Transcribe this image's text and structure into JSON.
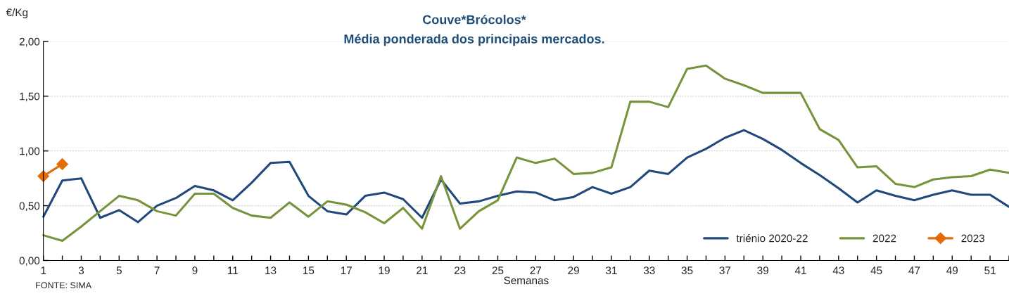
{
  "chart_data": {
    "type": "line",
    "title": "Couve*Brócolos*",
    "subtitle": "Média ponderada dos principais mercados.",
    "xlabel": "Semanas",
    "ylabel": "€/Kg",
    "x": [
      1,
      2,
      3,
      4,
      5,
      6,
      7,
      8,
      9,
      10,
      11,
      12,
      13,
      14,
      15,
      16,
      17,
      18,
      19,
      20,
      21,
      22,
      23,
      24,
      25,
      26,
      27,
      28,
      29,
      30,
      31,
      32,
      33,
      34,
      35,
      36,
      37,
      38,
      39,
      40,
      41,
      42,
      43,
      44,
      45,
      46,
      47,
      48,
      49,
      50,
      51,
      52
    ],
    "series": [
      {
        "name": "triénio 2020-22",
        "color": "#1f497d",
        "marker": "none",
        "values": [
          0.4,
          0.73,
          0.75,
          0.39,
          0.46,
          0.35,
          0.5,
          0.57,
          0.68,
          0.64,
          0.55,
          0.71,
          0.89,
          0.9,
          0.59,
          0.45,
          0.42,
          0.59,
          0.62,
          0.56,
          0.39,
          0.74,
          0.52,
          0.54,
          0.59,
          0.63,
          0.62,
          0.55,
          0.58,
          0.67,
          0.61,
          0.67,
          0.82,
          0.79,
          0.94,
          1.02,
          1.12,
          1.19,
          1.11,
          1.01,
          0.89,
          0.78,
          0.66,
          0.53,
          0.64,
          0.59,
          0.55,
          0.6,
          0.64,
          0.6,
          0.6,
          0.49
        ]
      },
      {
        "name": "2022",
        "color": "#77933c",
        "marker": "none",
        "values": [
          0.23,
          0.18,
          0.31,
          0.45,
          0.59,
          0.55,
          0.45,
          0.41,
          0.61,
          0.61,
          0.48,
          0.41,
          0.39,
          0.53,
          0.4,
          0.54,
          0.51,
          0.44,
          0.34,
          0.48,
          0.29,
          0.77,
          0.29,
          0.45,
          0.55,
          0.94,
          0.89,
          0.93,
          0.79,
          0.8,
          0.85,
          1.45,
          1.45,
          1.4,
          1.75,
          1.78,
          1.66,
          1.6,
          1.53,
          1.53,
          1.53,
          1.2,
          1.1,
          0.85,
          0.86,
          0.7,
          0.67,
          0.74,
          0.76,
          0.77,
          0.83,
          0.8
        ]
      },
      {
        "name": "2023",
        "color": "#e36c09",
        "marker": "diamond",
        "x": [
          1,
          2
        ],
        "values": [
          0.77,
          0.88
        ]
      }
    ],
    "xlim": [
      1,
      52
    ],
    "xticks": [
      1,
      {
        "value": 2,
        "label": null
      },
      3,
      {
        "value": 4,
        "label": null
      },
      5,
      {
        "value": 6,
        "label": null
      },
      7,
      {
        "value": 8,
        "label": null
      },
      9,
      {
        "value": 10,
        "label": null
      },
      11,
      {
        "value": 12,
        "label": null
      },
      13,
      {
        "value": 14,
        "label": null
      },
      15,
      {
        "value": 16,
        "label": null
      },
      17,
      {
        "value": 18,
        "label": null
      },
      19,
      {
        "value": 20,
        "label": null
      },
      21,
      {
        "value": 22,
        "label": null
      },
      23,
      {
        "value": 24,
        "label": null
      },
      25,
      {
        "value": 26,
        "label": null
      },
      27,
      {
        "value": 28,
        "label": null
      },
      29,
      {
        "value": 30,
        "label": null
      },
      31,
      {
        "value": 32,
        "label": null
      },
      33,
      {
        "value": 34,
        "label": null
      },
      35,
      {
        "value": 36,
        "label": null
      },
      37,
      {
        "value": 38,
        "label": null
      },
      39,
      {
        "value": 40,
        "label": null
      },
      41,
      {
        "value": 42,
        "label": null
      },
      43,
      {
        "value": 44,
        "label": null
      },
      45,
      {
        "value": 46,
        "label": null
      },
      47,
      {
        "value": 48,
        "label": null
      },
      49,
      {
        "value": 50,
        "label": null
      },
      51,
      {
        "value": 52,
        "label": null
      }
    ],
    "ylim": [
      0,
      2
    ],
    "yticks": [
      {
        "value": 0,
        "label": "0,00"
      },
      {
        "value": 0.5,
        "label": "0,50"
      },
      {
        "value": 1,
        "label": "1,00"
      },
      {
        "value": 1.5,
        "label": "1,50"
      },
      {
        "value": 2,
        "label": "2,00"
      }
    ],
    "grid": "y",
    "legend": "bottom right",
    "annotations": [
      "FONTE: SIMA"
    ]
  }
}
